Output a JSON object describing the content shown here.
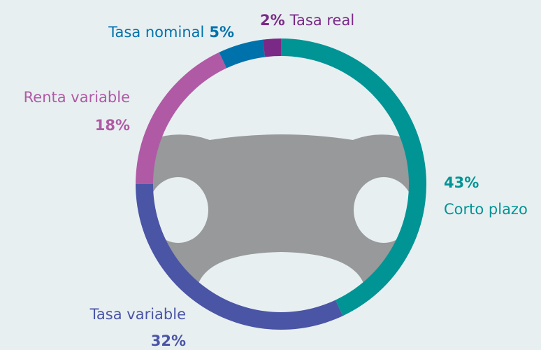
{
  "chart_data": {
    "type": "donut",
    "categories": [
      "Corto plazo",
      "Tasa variable",
      "Renta variable",
      "Tasa nominal",
      "Tasa real"
    ],
    "values": [
      43,
      32,
      18,
      5,
      2
    ],
    "value_labels": [
      "43%",
      "32%",
      "18%",
      "5%",
      "2%"
    ],
    "colors": [
      "#009494",
      "#4a55a6",
      "#b05aa5",
      "#0072ab",
      "#7a2a86"
    ]
  }
}
